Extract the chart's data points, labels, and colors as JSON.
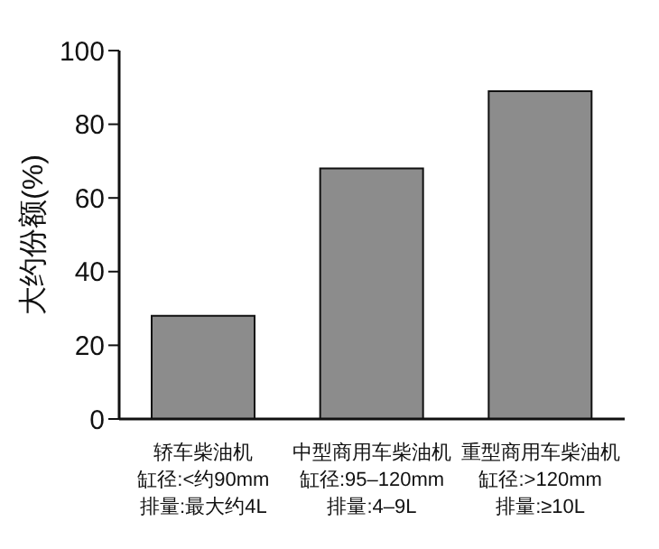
{
  "chart_data": {
    "type": "bar",
    "ylabel": "大约份额(%)",
    "categories": [
      "轿车柴油机",
      "中型商用车柴油机",
      "重型商用车柴油机"
    ],
    "annotations": [
      "缸径:<约90mm",
      "排量:最大约4L",
      "缸径:95–120mm",
      "排量:4–9L",
      "缸径:>120mm",
      "排量:≥10L"
    ],
    "values": [
      28,
      68,
      89
    ],
    "color": "#8c8c8c",
    "ylim": [
      0,
      100
    ],
    "yticks": [
      0,
      20,
      40,
      60,
      80,
      100
    ],
    "grid": false,
    "legend": false
  }
}
